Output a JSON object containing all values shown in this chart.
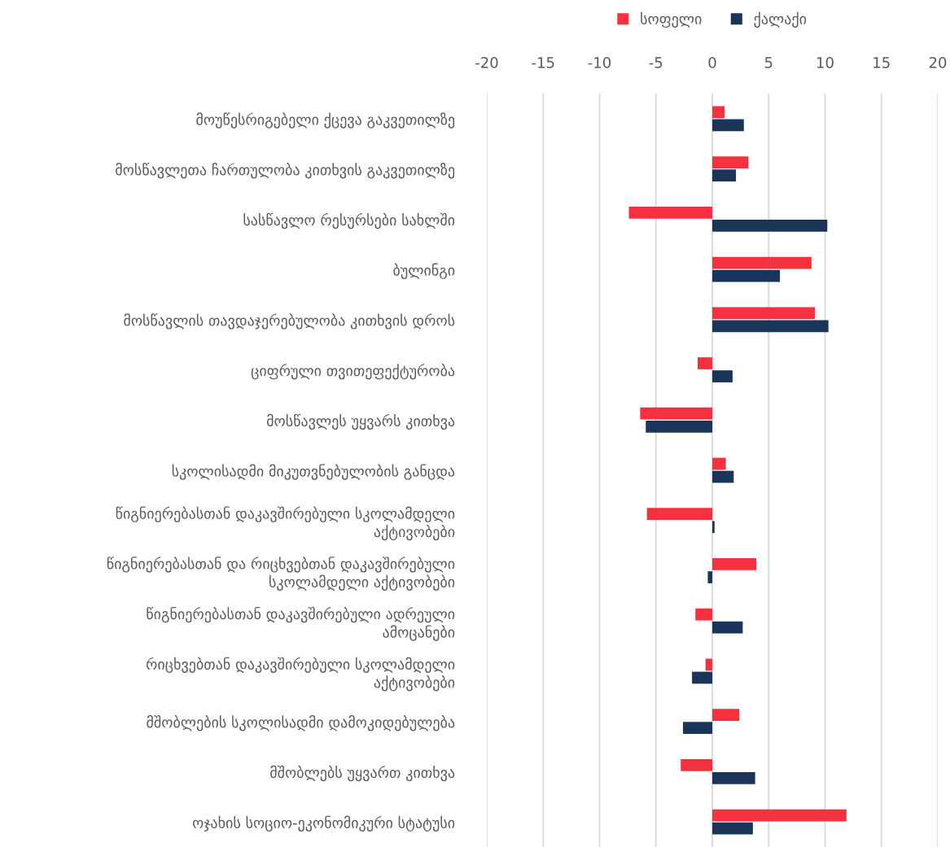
{
  "chart_data": {
    "type": "bar",
    "orientation": "horizontal",
    "categories": [
      "მოუწესრიგებელი ქცევა გაკვეთილზე",
      "მოსწავლეთა ჩართულობა კითხვის გაკვეთილზე",
      "სასწავლო რესურსები სახლში",
      "ბულინგი",
      "მოსწავლის თავდაჯერებულობა კითხვის დროს",
      "ციფრული თვითეფექტურობა",
      "მოსწავლეს უყვარს კითხვა",
      "სკოლისადმი მიკუთვნებულობის განცდა",
      "წიგნიერებასთან დაკავშირებული სკოლამდელი\nაქტივობები",
      "წიგნიერებასთან და რიცხვებთან დაკავშირებული\nსკოლამდელი აქტივობები",
      "წიგნიერებასთან დაკავშირებული ადრეული\nამოცანები",
      "რიცხვებთან დაკავშირებული სკოლამდელი\nაქტივობები",
      "მშობლების სკოლისადმი დამოკიდებულება",
      "მშობლებს უყვართ კითხვა",
      "ოჯახის სოციო-ეკონომიკური სტატუსი"
    ],
    "series": [
      {
        "name": "სოფელი",
        "color": "#f5313f",
        "values": [
          1.1,
          3.2,
          -7.4,
          8.8,
          9.1,
          -1.3,
          -6.4,
          1.2,
          -5.8,
          3.9,
          -1.5,
          -0.6,
          2.4,
          -2.8,
          11.9
        ]
      },
      {
        "name": "ქალაქი",
        "color": "#1b355a",
        "values": [
          2.8,
          2.1,
          10.2,
          6.0,
          10.3,
          1.8,
          -5.9,
          1.9,
          0.2,
          -0.4,
          2.7,
          -1.8,
          -2.6,
          3.8,
          3.6
        ]
      }
    ],
    "xlim": [
      -20,
      20
    ],
    "xticks": [
      {
        "value": -20,
        "label": "-20"
      },
      {
        "value": -15,
        "label": "-15"
      },
      {
        "value": -10,
        "label": "-10"
      },
      {
        "value": -5,
        "label": "-5"
      },
      0,
      5,
      10,
      15,
      20
    ],
    "grid": "x",
    "legend": "top"
  }
}
